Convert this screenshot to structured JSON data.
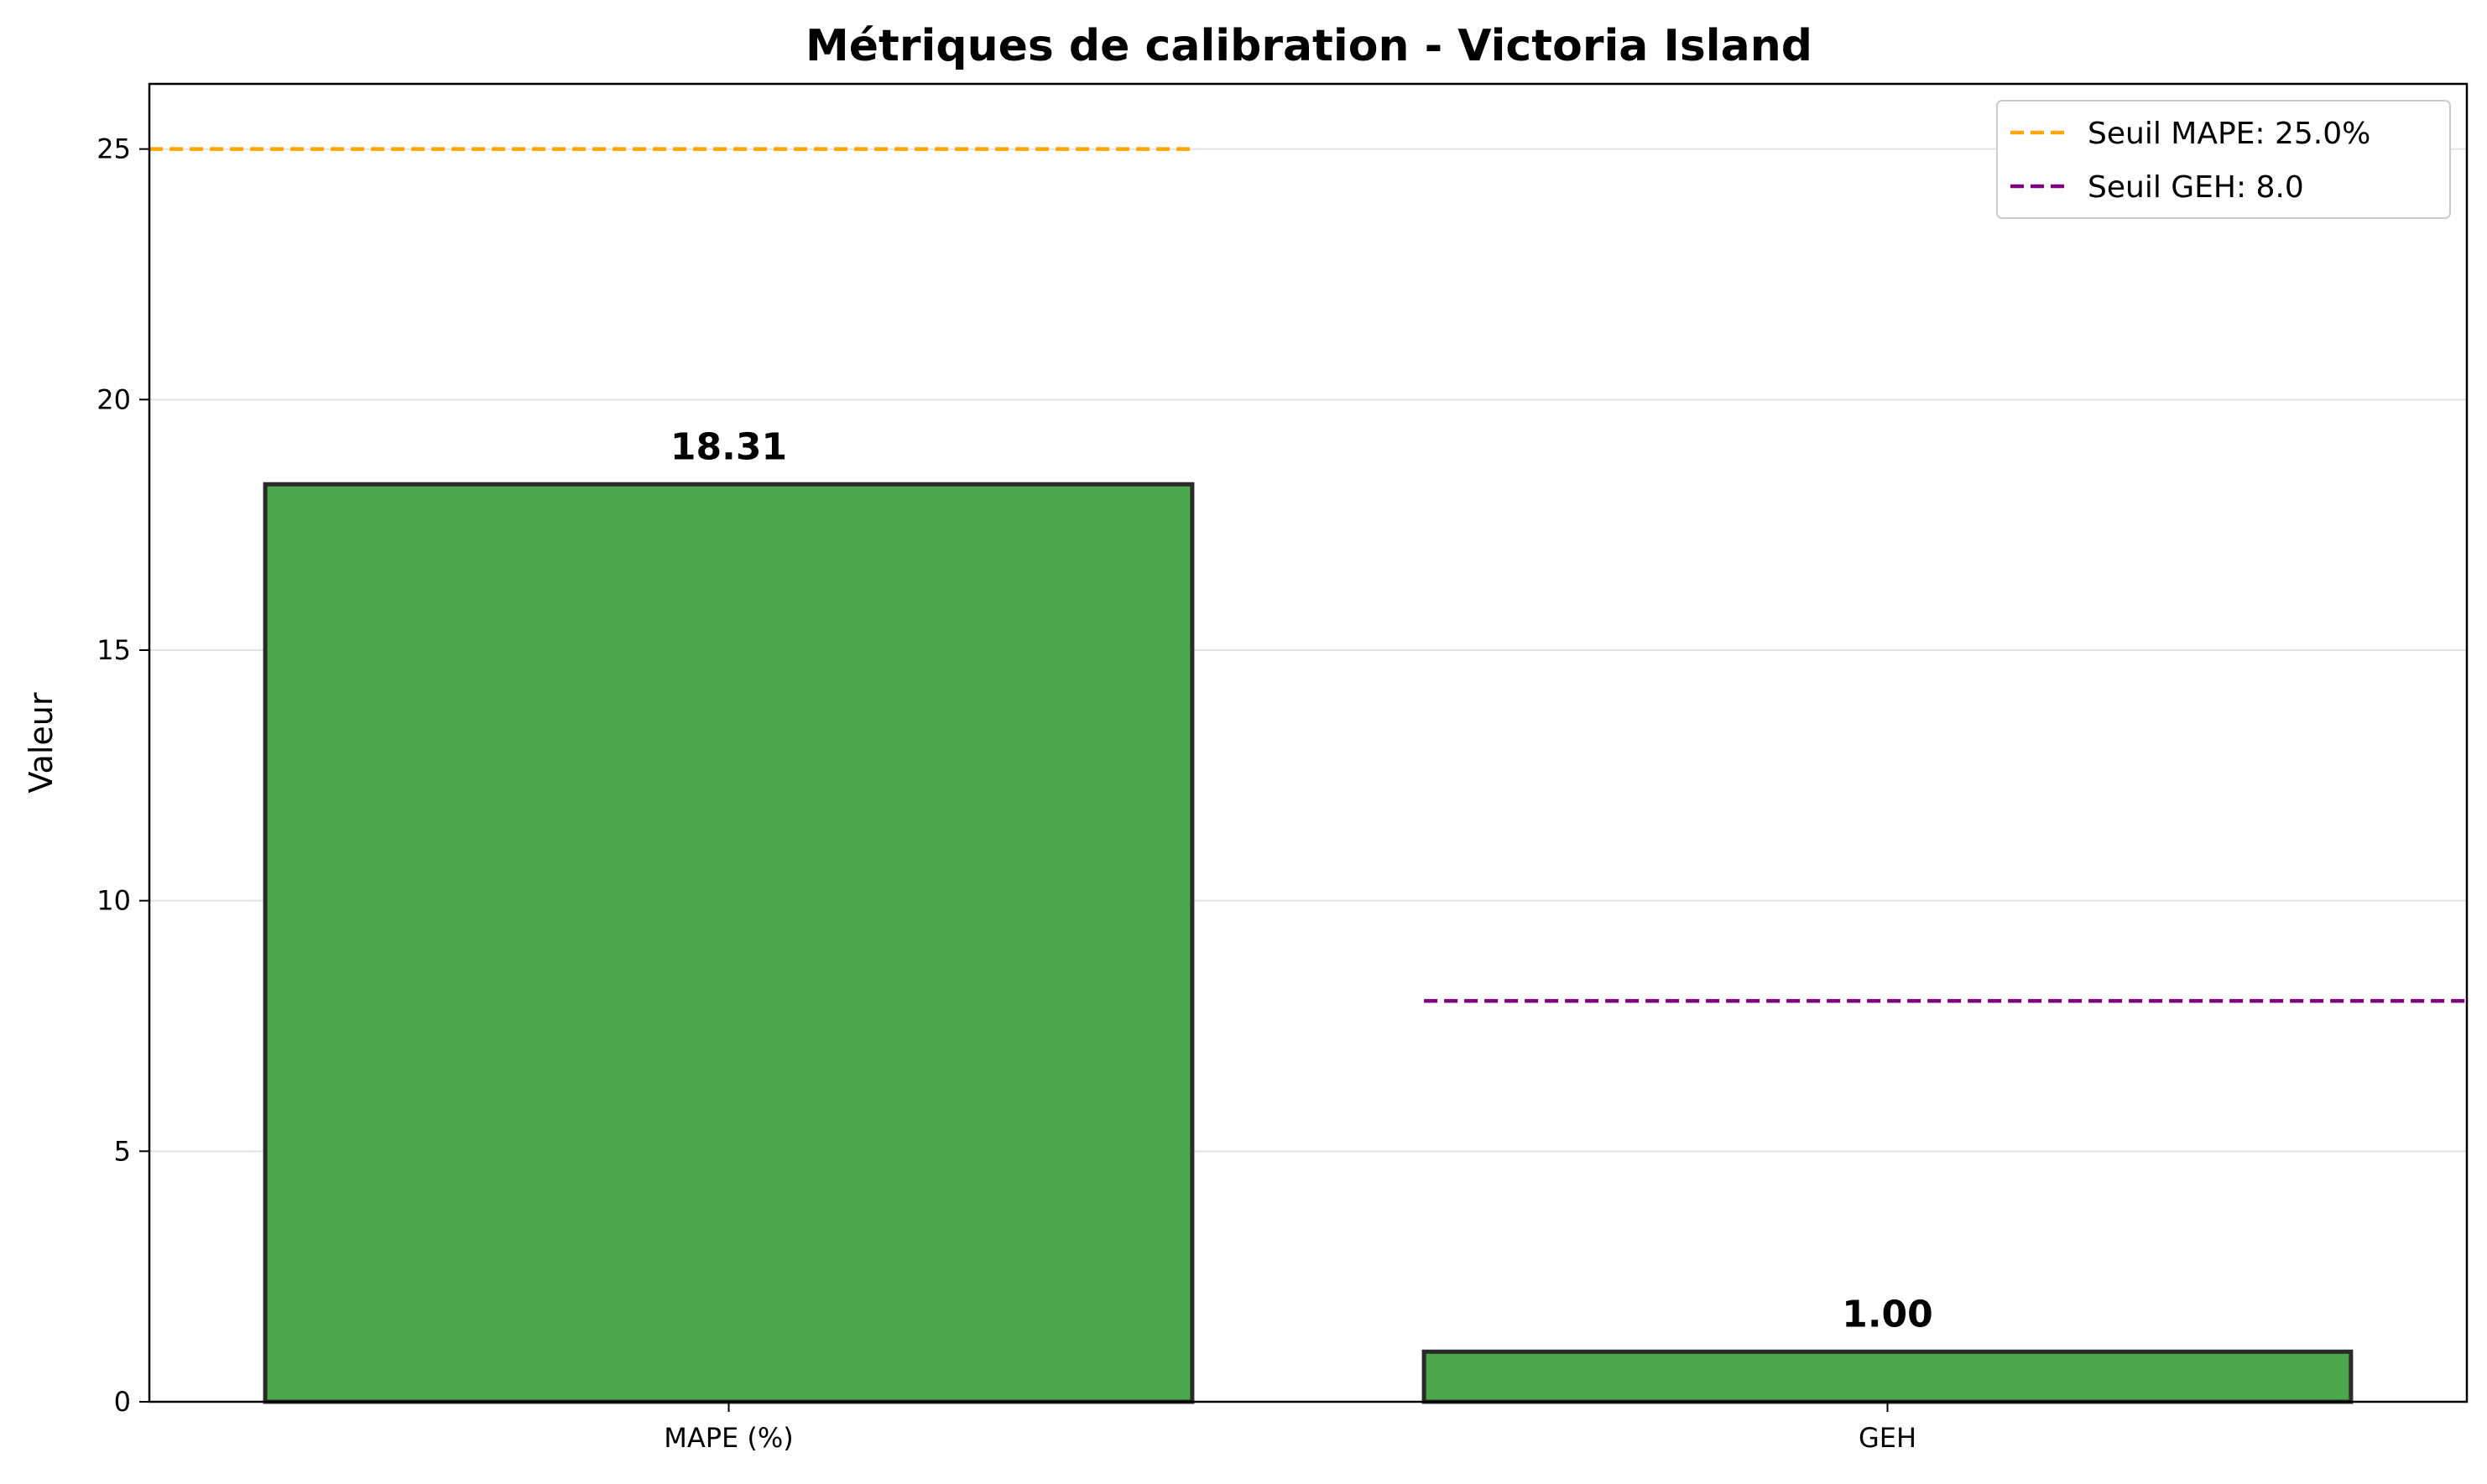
{
  "chart_data": {
    "type": "bar",
    "title": "Métriques de calibration - Victoria Island",
    "xlabel": "",
    "ylabel": "Valeur",
    "categories": [
      "MAPE (%)",
      "GEH"
    ],
    "values": [
      18.31,
      1.0
    ],
    "value_labels": [
      "18.31",
      "1.00"
    ],
    "ylim": [
      0,
      26.3
    ],
    "yticks": [
      0,
      5,
      10,
      15,
      20,
      25
    ],
    "grid": "y",
    "bar_color": "#4CA64C",
    "bar_edge_color": "#2a2a2a",
    "thresholds": [
      {
        "label": "Seuil MAPE: 25.0%",
        "value": 25.0,
        "color": "#FFA500",
        "category_index": 0
      },
      {
        "label": "Seuil GEH: 8.0",
        "value": 8.0,
        "color": "#800080",
        "category_index": 1
      }
    ],
    "legend_position": "top-right"
  }
}
